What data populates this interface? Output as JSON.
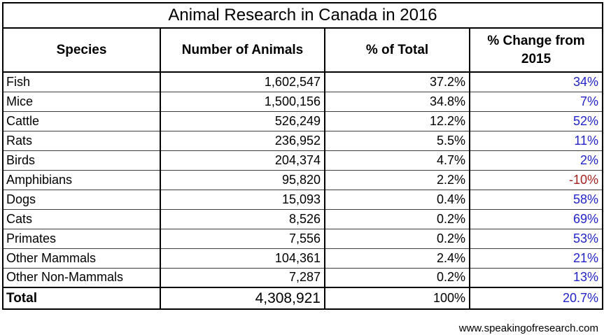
{
  "title": "Animal Research in Canada in 2016",
  "source_link": "www.speakingofresearch.com",
  "colors": {
    "positive_change": "#2323c8",
    "negative_change": "#a52222",
    "border": "#000000",
    "text": "#000000"
  },
  "chart_data": {
    "type": "table",
    "title": "Animal Research in Canada in 2016",
    "columns": [
      "Species",
      "Number of Animals",
      "% of Total",
      "% Change from 2015"
    ],
    "rows": [
      {
        "species": "Fish",
        "number": "1,602,547",
        "pct_total": "37.2%",
        "pct_change": "34%"
      },
      {
        "species": "Mice",
        "number": "1,500,156",
        "pct_total": "34.8%",
        "pct_change": "7%"
      },
      {
        "species": "Cattle",
        "number": "526,249",
        "pct_total": "12.2%",
        "pct_change": "52%"
      },
      {
        "species": "Rats",
        "number": "236,952",
        "pct_total": "5.5%",
        "pct_change": "11%"
      },
      {
        "species": "Birds",
        "number": "204,374",
        "pct_total": "4.7%",
        "pct_change": "2%"
      },
      {
        "species": "Amphibians",
        "number": "95,820",
        "pct_total": "2.2%",
        "pct_change": "-10%"
      },
      {
        "species": "Dogs",
        "number": "15,093",
        "pct_total": "0.4%",
        "pct_change": "58%"
      },
      {
        "species": "Cats",
        "number": "8,526",
        "pct_total": "0.2%",
        "pct_change": "69%"
      },
      {
        "species": "Primates",
        "number": "7,556",
        "pct_total": "0.2%",
        "pct_change": "53%"
      },
      {
        "species": "Other Mammals",
        "number": "104,361",
        "pct_total": "2.4%",
        "pct_change": "21%"
      },
      {
        "species": "Other Non-Mammals",
        "number": "7,287",
        "pct_total": "0.2%",
        "pct_change": "13%"
      }
    ],
    "total_row": {
      "species": "Total",
      "number": "4,308,921",
      "pct_total": "100%",
      "pct_change": "20.7%"
    },
    "source": "www.speakingofresearch.com"
  }
}
